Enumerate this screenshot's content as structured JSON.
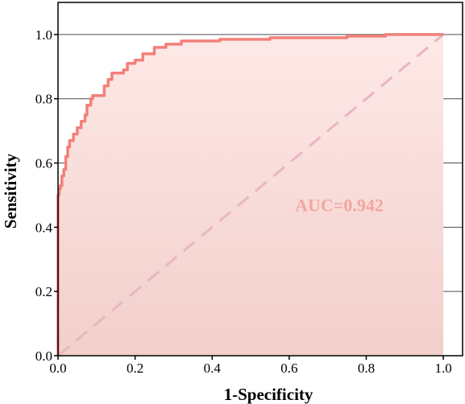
{
  "chart_data": {
    "type": "line",
    "xlabel": "1-Specificity",
    "ylabel": "Sensitivity",
    "xlim": [
      0,
      1.05
    ],
    "ylim": [
      0,
      1.1
    ],
    "xticks": [
      "0.0",
      "0.2",
      "0.4",
      "0.6",
      "0.8",
      "1.0"
    ],
    "yticks": [
      "0.0",
      "0.2",
      "0.4",
      "0.6",
      "0.8",
      "1.0"
    ],
    "grid": "horizontal",
    "annotation": "AUC=0.942",
    "colors": {
      "roc": "#f28079",
      "diagonal": "#e8b6c3",
      "fill_top": "#fde9e7",
      "fill_bottom": "#f2cfcb",
      "annotation": "#f4a5a0"
    },
    "series": [
      {
        "x": [
          0,
          0,
          0.003,
          0.003,
          0.006,
          0.006,
          0.01,
          0.01,
          0.015,
          0.015,
          0.02,
          0.02,
          0.025,
          0.025,
          0.03,
          0.03,
          0.04,
          0.04,
          0.05,
          0.05,
          0.06,
          0.06,
          0.07,
          0.07,
          0.075,
          0.075,
          0.085,
          0.085,
          0.09,
          0.09,
          0.12,
          0.12,
          0.13,
          0.13,
          0.14,
          0.14,
          0.17,
          0.17,
          0.18,
          0.18,
          0.2,
          0.2,
          0.22,
          0.22,
          0.25,
          0.25,
          0.28,
          0.28,
          0.32,
          0.32,
          0.42,
          0.42,
          0.55,
          0.55,
          0.75,
          0.75,
          0.85,
          0.85,
          1.0
        ],
        "y": [
          0,
          0.5,
          0.5,
          0.52,
          0.52,
          0.53,
          0.53,
          0.56,
          0.56,
          0.58,
          0.58,
          0.62,
          0.62,
          0.65,
          0.65,
          0.67,
          0.67,
          0.69,
          0.69,
          0.71,
          0.71,
          0.73,
          0.73,
          0.75,
          0.75,
          0.78,
          0.78,
          0.8,
          0.8,
          0.81,
          0.81,
          0.84,
          0.84,
          0.86,
          0.86,
          0.88,
          0.88,
          0.89,
          0.89,
          0.91,
          0.91,
          0.92,
          0.92,
          0.94,
          0.94,
          0.96,
          0.96,
          0.97,
          0.97,
          0.98,
          0.98,
          0.985,
          0.985,
          0.99,
          0.99,
          0.995,
          0.995,
          1.0,
          1.0
        ]
      }
    ]
  }
}
